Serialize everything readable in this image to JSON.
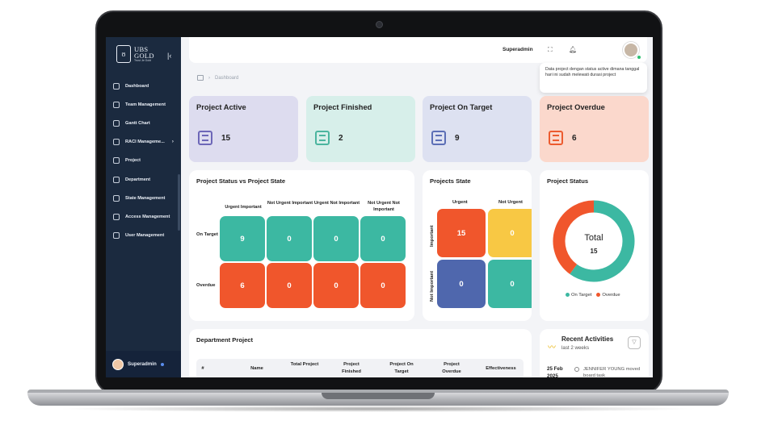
{
  "sidebar": {
    "logo_line1": "UBS",
    "logo_line2": "GOLD",
    "logo_tagline": "Trust Je Gold",
    "items": [
      {
        "label": "Dashboard"
      },
      {
        "label": "Team Management"
      },
      {
        "label": "Gantt Chart"
      },
      {
        "label": "RACI Manageme..."
      },
      {
        "label": "Project"
      },
      {
        "label": "Department"
      },
      {
        "label": "State Management"
      },
      {
        "label": "Access Management"
      },
      {
        "label": "User Management"
      }
    ],
    "user": "Superadmin"
  },
  "header": {
    "user": "Superadmin",
    "tooltip": "Data project dengan status active dimana tanggal hari ini sudah melewati durasi project"
  },
  "breadcrumb": "Dashboard",
  "stats": [
    {
      "title": "Project Active",
      "value": "15",
      "bg": "#dddcef",
      "icon_color": "#6d67b8"
    },
    {
      "title": "Project Finished",
      "value": "2",
      "bg": "#d7efea",
      "icon_color": "#4bb59f"
    },
    {
      "title": "Project On Target",
      "value": "9",
      "bg": "#dde1f1",
      "icon_color": "#5c6fb6"
    },
    {
      "title": "Project Overdue",
      "value": "6",
      "bg": "#fbd8cc",
      "icon_color": "#ec5b2f"
    }
  ],
  "status_vs_state": {
    "title": "Project Status vs Project State",
    "columns": [
      "Urgent Important",
      "Not Urgent Important",
      "Urgent Not Important",
      "Not Urgent Not Important"
    ],
    "rows": [
      {
        "label": "On Target",
        "values": [
          "9",
          "0",
          "0",
          "0"
        ]
      },
      {
        "label": "Overdue",
        "values": [
          "6",
          "0",
          "0",
          "0"
        ]
      }
    ]
  },
  "projects_state": {
    "title": "Projects State",
    "col1": "Urgent",
    "col2": "Not Urgent",
    "row1": "Important",
    "row2": "Not Important",
    "values": [
      "15",
      "0",
      "0",
      "0"
    ]
  },
  "project_status": {
    "title": "Project Status",
    "center_label": "Total",
    "center_value": "15",
    "legend": [
      {
        "name": "On Target",
        "color": "#3cb8a2"
      },
      {
        "name": "Overdue",
        "color": "#f0562c"
      }
    ]
  },
  "chart_data": {
    "type": "pie",
    "title": "Project Status",
    "categories": [
      "On Target",
      "Overdue"
    ],
    "values": [
      9,
      6
    ]
  },
  "department": {
    "title": "Department Project",
    "columns": [
      "#",
      "Name",
      "Total Project",
      "Project Finished",
      "Project On Target",
      "Project Overdue",
      "Effectiveness"
    ]
  },
  "activities": {
    "title": "Recent Activities",
    "subtitle": "last 2 weeks",
    "date": "25 Feb 2025",
    "text": "JENNIFER YOUNG moved board task"
  }
}
